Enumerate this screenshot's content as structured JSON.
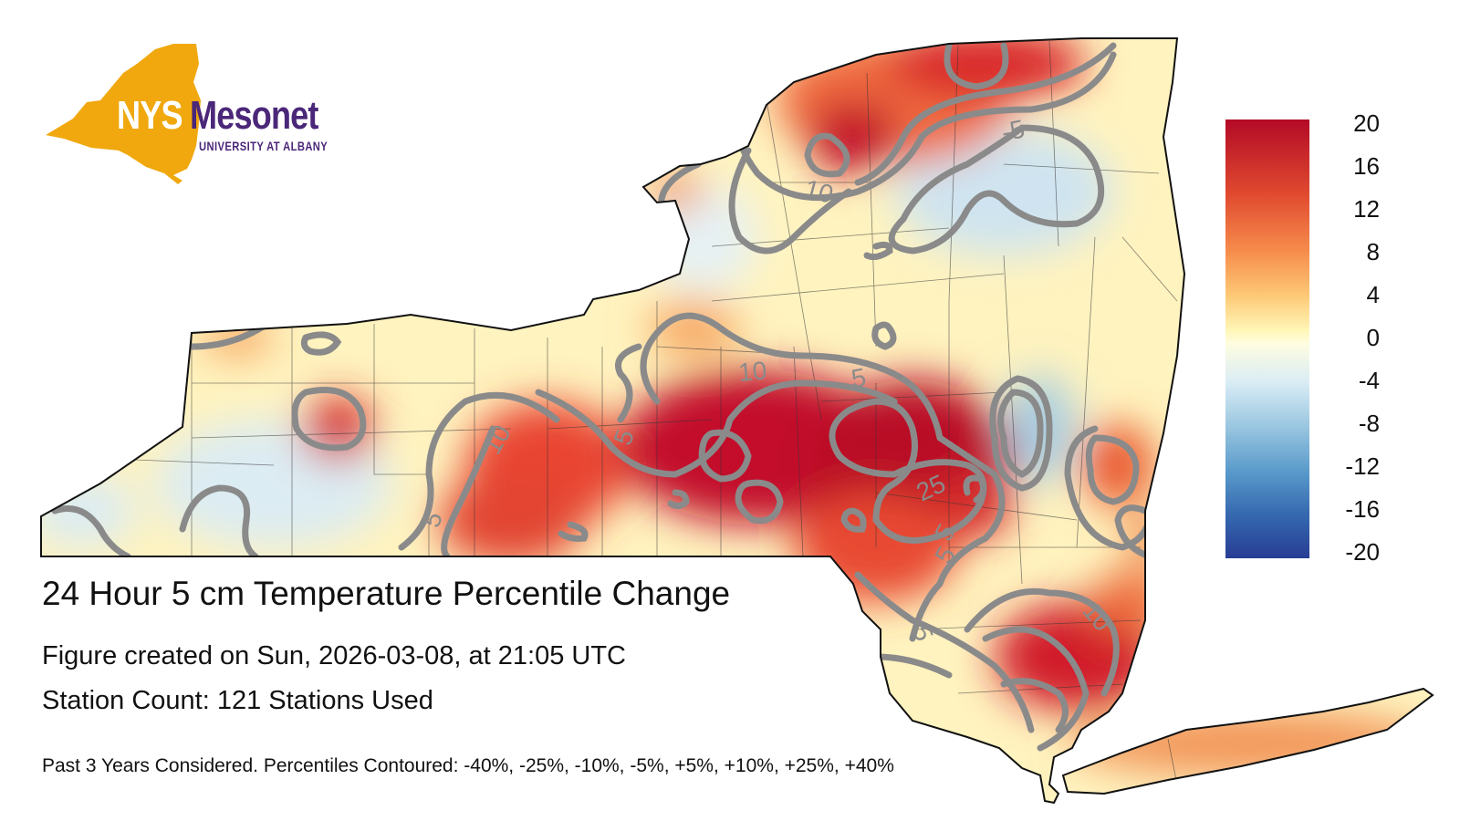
{
  "logo": {
    "nys": "NYS",
    "mesonet": "Mesonet",
    "subtitle": "UNIVERSITY AT ALBANY",
    "colors": {
      "gold": "#f0a80e",
      "purple": "#4b2779"
    }
  },
  "title": "24 Hour 5 cm Temperature Percentile Change",
  "created": "Figure created on Sun, 2026-03-08, at 21:05 UTC",
  "stations": "Station Count: 121 Stations Used",
  "footnote": "Past 3 Years Considered. Percentiles Contoured: -40%, -25%, -10%, -5%, +5%, +10%, +25%, +40%",
  "colorbar": {
    "ticks": [
      "20",
      "16",
      "12",
      "8",
      "4",
      "0",
      "-4",
      "-8",
      "-12",
      "-16",
      "-20"
    ],
    "colors": {
      "max": "#b30a26",
      "mid": "#fffde0",
      "min": "#283d94"
    }
  },
  "contour_labels": [
    "-5",
    "10",
    "5",
    "10",
    "5",
    "10",
    "5",
    "25",
    "5",
    "5",
    "10",
    "5"
  ]
}
